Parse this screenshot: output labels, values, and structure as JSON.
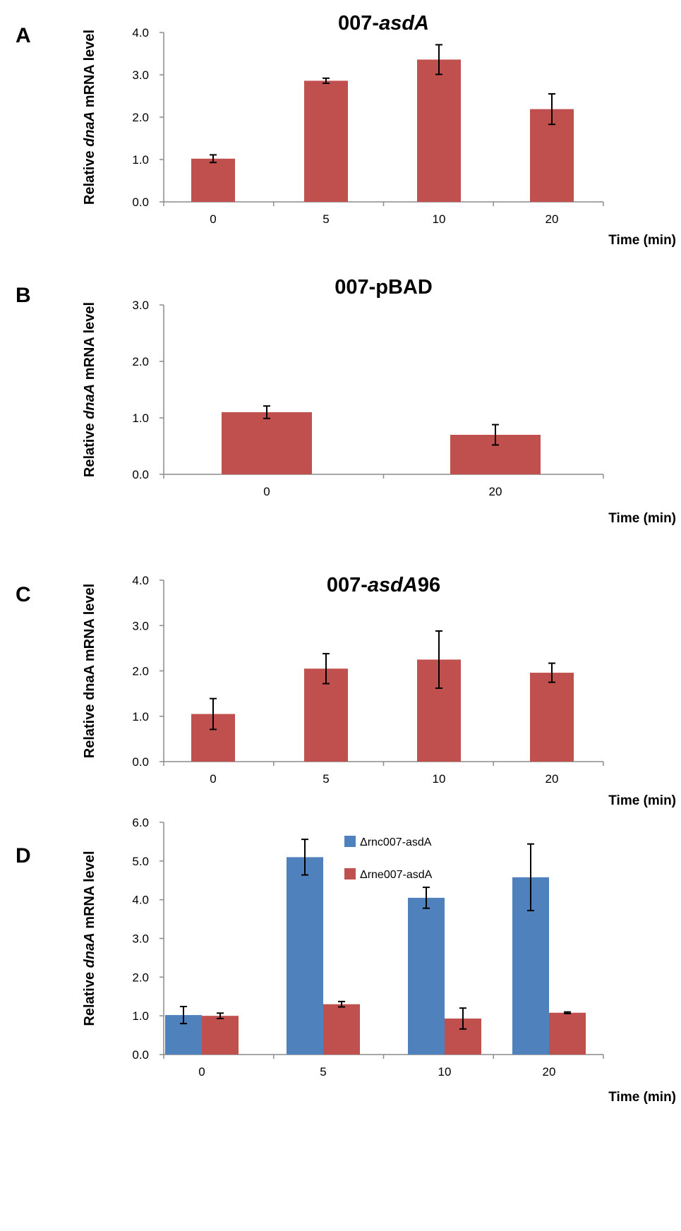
{
  "chart_data": [
    {
      "panel": "A",
      "type": "bar",
      "title": "007-asdA",
      "title_parts": [
        {
          "t": "007-",
          "italic": false
        },
        {
          "t": "asdA",
          "italic": true
        }
      ],
      "ylabel_parts": [
        {
          "t": "Relative ",
          "italic": false
        },
        {
          "t": "dnaA",
          "italic": true
        },
        {
          "t": " mRNA level",
          "italic": false
        }
      ],
      "xlabel": "Time (min)",
      "categories": [
        "0",
        "5",
        "10",
        "20"
      ],
      "yticks": [
        "0.0",
        "1.0",
        "2.0",
        "3.0",
        "4.0"
      ],
      "ylim": [
        0,
        4
      ],
      "series": [
        {
          "values": [
            1.02,
            2.86,
            3.36,
            2.19
          ],
          "errors": [
            0.09,
            0.06,
            0.35,
            0.36
          ],
          "color": "#c0504d"
        }
      ]
    },
    {
      "panel": "B",
      "type": "bar",
      "title": "007-pBAD",
      "title_parts": [
        {
          "t": "007-pBAD",
          "italic": false
        }
      ],
      "ylabel_parts": [
        {
          "t": "Relative ",
          "italic": false
        },
        {
          "t": "dnaA",
          "italic": true
        },
        {
          "t": " mRNA level",
          "italic": false
        }
      ],
      "xlabel": "Time (min)",
      "categories": [
        "0",
        "20"
      ],
      "yticks": [
        "0.0",
        "1.0",
        "2.0",
        "3.0"
      ],
      "ylim": [
        0,
        3
      ],
      "series": [
        {
          "values": [
            1.1,
            0.7
          ],
          "errors": [
            0.11,
            0.18
          ],
          "color": "#c0504d"
        }
      ]
    },
    {
      "panel": "C",
      "type": "bar",
      "title": "007-asdA96",
      "title_parts": [
        {
          "t": "007-",
          "italic": false
        },
        {
          "t": "asdA",
          "italic": true
        },
        {
          "t": "96",
          "italic": false
        }
      ],
      "ylabel_parts": [
        {
          "t": "Relative dnaA mRNA level",
          "italic": false
        }
      ],
      "xlabel": "Time (min)",
      "categories": [
        "0",
        "5",
        "10",
        "20"
      ],
      "yticks": [
        "0.0",
        "1.0",
        "2.0",
        "3.0",
        "4.0"
      ],
      "ylim": [
        0,
        4
      ],
      "series": [
        {
          "values": [
            1.05,
            2.05,
            2.25,
            1.96
          ],
          "errors": [
            0.34,
            0.33,
            0.63,
            0.21
          ],
          "color": "#c0504d"
        }
      ]
    },
    {
      "panel": "D",
      "type": "bar",
      "title": "",
      "title_parts": [],
      "ylabel_parts": [
        {
          "t": "Relative ",
          "italic": false
        },
        {
          "t": "dnaA",
          "italic": true
        },
        {
          "t": " mRNA level",
          "italic": false
        }
      ],
      "xlabel": "Time (min)",
      "categories": [
        "0",
        "5",
        "10",
        "20"
      ],
      "yticks": [
        "0.0",
        "1.0",
        "2.0",
        "3.0",
        "4.0",
        "5.0",
        "6.0"
      ],
      "ylim": [
        0,
        6
      ],
      "legend_position": "top-center",
      "series": [
        {
          "name": "Δrnc007-asdA",
          "values": [
            1.02,
            5.1,
            4.05,
            4.58
          ],
          "errors": [
            0.22,
            0.46,
            0.27,
            0.86
          ],
          "color": "#4f81bd"
        },
        {
          "name": "Δrne007-asdA",
          "values": [
            1.0,
            1.3,
            0.93,
            1.08
          ],
          "errors": [
            0.07,
            0.07,
            0.27,
            0.02
          ],
          "color": "#c0504d"
        }
      ]
    }
  ]
}
